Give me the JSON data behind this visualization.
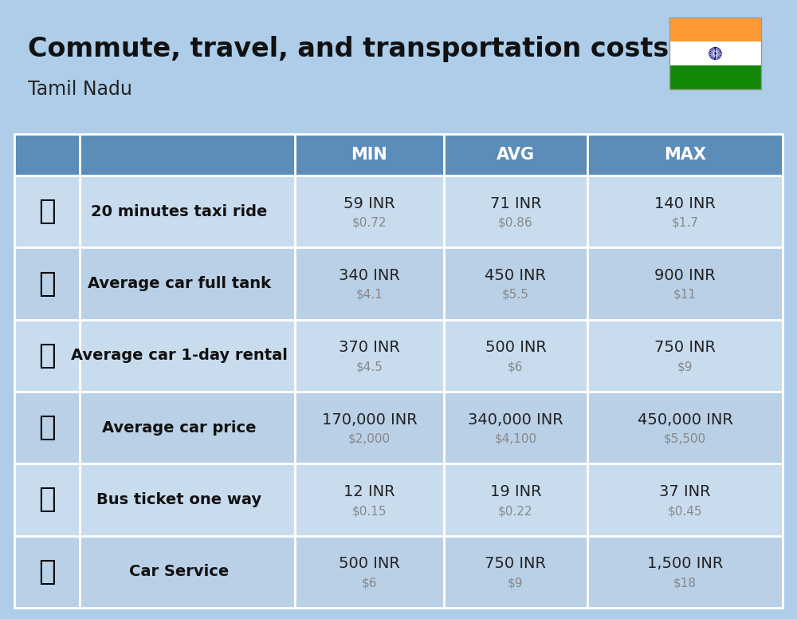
{
  "title": "Commute, travel, and transportation costs",
  "subtitle": "Tamil Nadu",
  "bg_color": "#AECDE8",
  "header_bg_color": "#5B8DB8",
  "header_text_color": "#FFFFFF",
  "row_colors": [
    "#C8DCEE",
    "#BAD0E6"
  ],
  "divider_color": "#FFFFFF",
  "col_headers": [
    "MIN",
    "AVG",
    "MAX"
  ],
  "rows": [
    {
      "label": "20 minutes taxi ride",
      "min_inr": "59 INR",
      "min_usd": "$0.72",
      "avg_inr": "71 INR",
      "avg_usd": "$0.86",
      "max_inr": "140 INR",
      "max_usd": "$1.7"
    },
    {
      "label": "Average car full tank",
      "min_inr": "340 INR",
      "min_usd": "$4.1",
      "avg_inr": "450 INR",
      "avg_usd": "$5.5",
      "max_inr": "900 INR",
      "max_usd": "$11"
    },
    {
      "label": "Average car 1-day rental",
      "min_inr": "370 INR",
      "min_usd": "$4.5",
      "avg_inr": "500 INR",
      "avg_usd": "$6",
      "max_inr": "750 INR",
      "max_usd": "$9"
    },
    {
      "label": "Average car price",
      "min_inr": "170,000 INR",
      "min_usd": "$2,000",
      "avg_inr": "340,000 INR",
      "avg_usd": "$4,100",
      "max_inr": "450,000 INR",
      "max_usd": "$5,500"
    },
    {
      "label": "Bus ticket one way",
      "min_inr": "12 INR",
      "min_usd": "$0.15",
      "avg_inr": "19 INR",
      "avg_usd": "$0.22",
      "max_inr": "37 INR",
      "max_usd": "$0.45"
    },
    {
      "label": "Car Service",
      "min_inr": "500 INR",
      "min_usd": "$6",
      "avg_inr": "750 INR",
      "avg_usd": "$9",
      "max_inr": "1,500 INR",
      "max_usd": "$18"
    }
  ],
  "title_fontsize": 24,
  "subtitle_fontsize": 17,
  "header_fontsize": 15,
  "label_fontsize": 14,
  "value_fontsize": 14,
  "usd_fontsize": 11,
  "flag_orange": "#FF9933",
  "flag_white": "#FFFFFF",
  "flag_green": "#138808",
  "flag_chakra": "#000080"
}
